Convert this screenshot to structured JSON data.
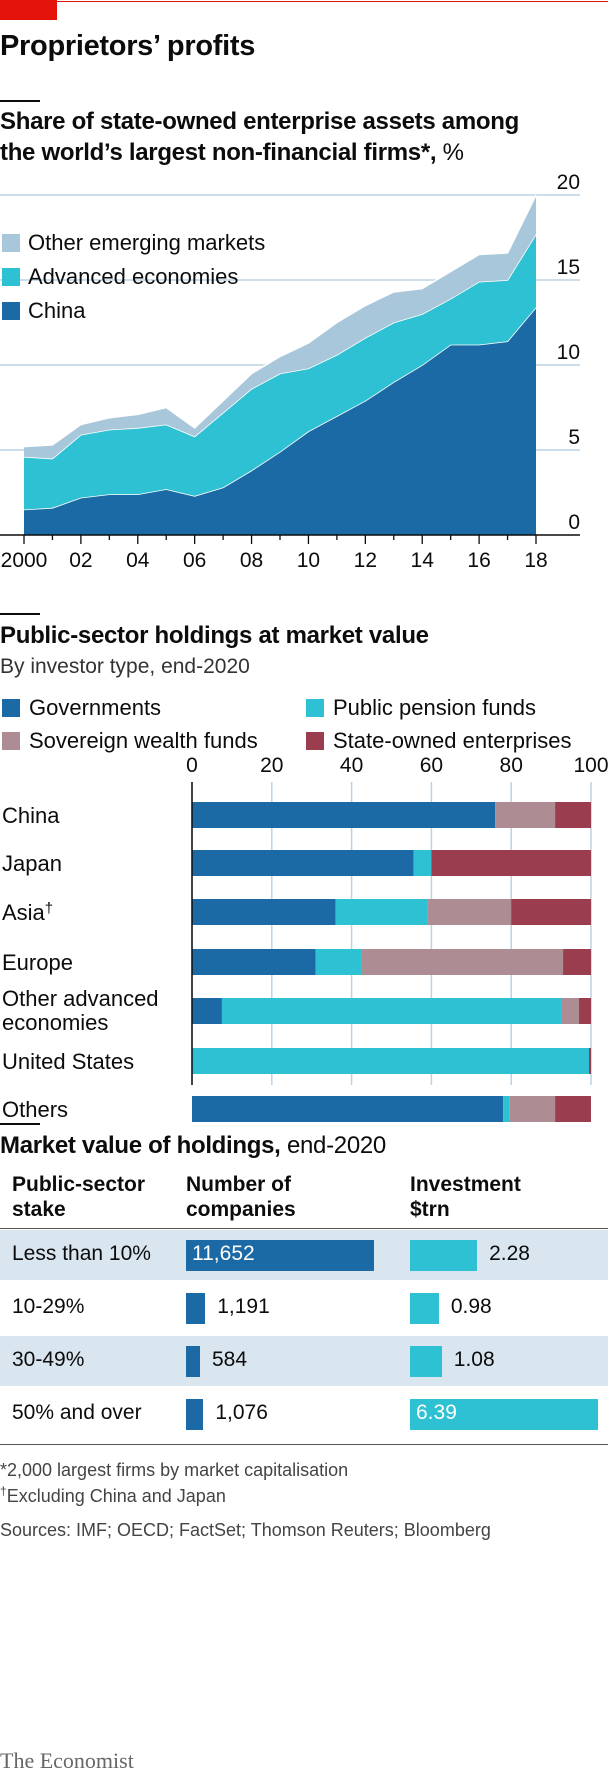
{
  "title": "Proprietors’ profits",
  "chart1": {
    "title": "Share of state-owned enterprise assets among the world’s largest non-financial firms*,",
    "unit": "%",
    "legend": [
      "Other emerging markets",
      "Advanced economies",
      "China"
    ],
    "colors": {
      "Other emerging markets": "#a9c7da",
      "Advanced economies": "#2ec0d3",
      "China": "#1b6aa5"
    },
    "x_tick_labels": [
      "2000",
      "02",
      "04",
      "06",
      "08",
      "10",
      "12",
      "14",
      "16",
      "18"
    ],
    "y_tick_labels": [
      "20",
      "15",
      "10",
      "5",
      "0"
    ]
  },
  "chart2": {
    "title": "Public-sector holdings at market value",
    "subtitle": "By investor type, end-2020",
    "legend": [
      "Governments",
      "Public pension funds",
      "Sovereign wealth funds",
      "State-owned enterprises"
    ],
    "colors": {
      "Governments": "#1b6aa5",
      "Public pension funds": "#2ec0d3",
      "Sovereign wealth funds": "#ad8c94",
      "State-owned enterprises": "#993d4f"
    },
    "x_tick_labels": [
      "0",
      "20",
      "40",
      "60",
      "80",
      "100"
    ]
  },
  "chart3": {
    "title": "Market value of holdings,",
    "title_suffix": "end-2020",
    "col1_header": [
      "Public-sector",
      "stake"
    ],
    "col2_header": [
      "Number of",
      "companies"
    ],
    "col3_header": [
      "Investment",
      "$trn"
    ],
    "rows": [
      {
        "label": "Less than 10%",
        "companies": "11,652",
        "investment": "2.28"
      },
      {
        "label": "10-29%",
        "companies": "1,191",
        "investment": "0.98"
      },
      {
        "label": "30-49%",
        "companies": "584",
        "investment": "1.08"
      },
      {
        "label": "50% and over",
        "companies": "1,076",
        "investment": "6.39"
      }
    ]
  },
  "footnotes": {
    "star": "*2,000 largest firms by market capitalisation",
    "dagger_mark": "†",
    "dagger": "Excluding China and Japan",
    "sources": "Sources: IMF; OECD; FactSet; Thomson Reuters; Bloomberg"
  },
  "brand": "The Economist",
  "chart_data": [
    {
      "type": "area",
      "stacked": true,
      "title": "Share of state-owned enterprise assets among the world’s largest non-financial firms*, %",
      "x": [
        2000,
        2001,
        2002,
        2003,
        2004,
        2005,
        2006,
        2007,
        2008,
        2009,
        2010,
        2011,
        2012,
        2013,
        2014,
        2015,
        2016,
        2017,
        2018
      ],
      "series": [
        {
          "name": "China",
          "values": [
            1.5,
            1.6,
            2.2,
            2.4,
            2.4,
            2.7,
            2.3,
            2.8,
            3.8,
            4.9,
            6.1,
            7.0,
            7.9,
            9.0,
            10.0,
            11.2,
            11.2,
            11.4,
            13.4
          ]
        },
        {
          "name": "Advanced economies",
          "values": [
            3.1,
            2.9,
            3.7,
            3.8,
            3.9,
            3.8,
            3.5,
            4.4,
            4.8,
            4.6,
            3.7,
            3.6,
            3.7,
            3.5,
            3.0,
            2.7,
            3.7,
            3.6,
            4.3
          ]
        },
        {
          "name": "Other emerging markets",
          "values": [
            0.6,
            0.8,
            0.6,
            0.7,
            0.8,
            1.0,
            0.5,
            0.7,
            0.9,
            1.0,
            1.5,
            1.9,
            1.9,
            1.8,
            1.5,
            1.6,
            1.6,
            1.6,
            2.3
          ]
        }
      ],
      "ylim": [
        0,
        20
      ],
      "legend_position": "top-left",
      "grid": true
    },
    {
      "type": "bar",
      "orientation": "horizontal",
      "stacked": true,
      "title": "Public-sector holdings at market value",
      "subtitle": "By investor type, end-2020",
      "categories": [
        "China",
        "Japan",
        "Asia†",
        "Europe",
        "Other advanced economies",
        "United States",
        "Others"
      ],
      "series": [
        {
          "name": "Governments",
          "values": [
            76,
            55.5,
            36,
            31,
            7.5,
            0,
            78
          ]
        },
        {
          "name": "Public pension funds",
          "values": [
            0,
            4.5,
            23,
            11.5,
            85,
            99.5,
            1.5
          ]
        },
        {
          "name": "Sovereign wealth funds",
          "values": [
            15,
            0,
            21,
            50.5,
            4.5,
            0,
            11.5
          ]
        },
        {
          "name": "State-owned enterprises",
          "values": [
            9,
            40,
            20,
            7,
            3,
            0.5,
            9
          ]
        }
      ],
      "xlim": [
        0,
        100
      ],
      "legend_position": "top"
    },
    {
      "type": "table",
      "title": "Market value of holdings, end-2020",
      "columns": [
        "Public-sector stake",
        "Number of companies",
        "Investment $trn"
      ],
      "rows": [
        [
          "Less than 10%",
          11652,
          2.28
        ],
        [
          "10-29%",
          1191,
          0.98
        ],
        [
          "30-49%",
          584,
          1.08
        ],
        [
          "50% and over",
          1076,
          6.39
        ]
      ]
    }
  ]
}
